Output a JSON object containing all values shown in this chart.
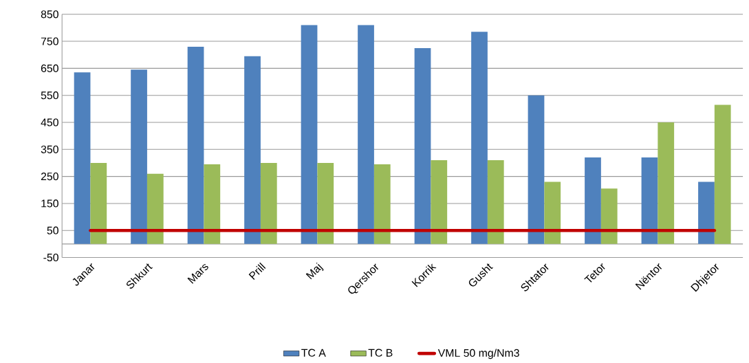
{
  "chart_data": {
    "type": "bar",
    "categories": [
      "Janar",
      "Shkurt",
      "Mars",
      "Prill",
      "Maj",
      "Qershor",
      "Korrik",
      "Gusht",
      "Shtator",
      "Tetor",
      "Nëntor",
      "Dhjetor"
    ],
    "series": [
      {
        "name": "TC A",
        "color": "#4f81bd",
        "values": [
          635,
          645,
          730,
          695,
          810,
          810,
          725,
          785,
          550,
          320,
          320,
          230
        ]
      },
      {
        "name": "TC B",
        "color": "#9bbb59",
        "values": [
          300,
          260,
          295,
          300,
          300,
          295,
          310,
          310,
          230,
          205,
          450,
          515
        ]
      },
      {
        "name": "VML 50 mg/Nm3",
        "type": "line",
        "color": "#c00000",
        "values": [
          50,
          50,
          50,
          50,
          50,
          50,
          50,
          50,
          50,
          50,
          50,
          50
        ]
      }
    ],
    "ylim": [
      -50,
      850
    ],
    "yticks": [
      -50,
      50,
      150,
      250,
      350,
      450,
      550,
      650,
      750,
      850
    ],
    "grid": "y",
    "legend": "bottom",
    "marker": "none"
  }
}
